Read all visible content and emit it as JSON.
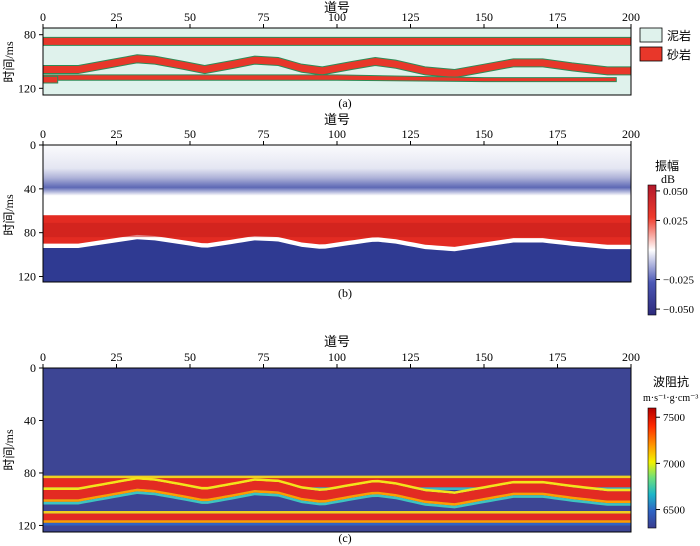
{
  "chart_data": [
    {
      "panel": "(a)",
      "type": "heatmap",
      "xlabel": "道号",
      "ylabel": "时间/ms",
      "xlim": [
        0,
        200
      ],
      "ylim": [
        75,
        125
      ],
      "xticks": [
        0,
        25,
        50,
        75,
        100,
        125,
        150,
        175,
        200
      ],
      "yticks": [
        80,
        120
      ],
      "legend": {
        "placement": "right",
        "entries": [
          {
            "label": "泥岩",
            "color": "#dff2ec"
          },
          {
            "label": "砂岩",
            "color": "#e8372a"
          }
        ]
      },
      "layers": [
        {
          "name": "sand",
          "top": [
            [
              0,
              82
            ],
            [
              200,
              82
            ]
          ],
          "bottom": [
            [
              0,
              88
            ],
            [
              200,
              88
            ]
          ]
        },
        {
          "name": "sand",
          "top": [
            [
              0,
              103
            ],
            [
              12,
              103
            ],
            [
              22,
              99
            ],
            [
              32,
              95
            ],
            [
              38,
              96
            ],
            [
              48,
              100
            ],
            [
              55,
              103
            ],
            [
              65,
              99
            ],
            [
              72,
              96
            ],
            [
              80,
              97
            ],
            [
              88,
              102
            ],
            [
              95,
              104
            ],
            [
              105,
              100
            ],
            [
              113,
              97
            ],
            [
              120,
              99
            ],
            [
              130,
              104
            ],
            [
              140,
              106
            ],
            [
              150,
              102
            ],
            [
              160,
              98
            ],
            [
              170,
              98
            ],
            [
              180,
              101
            ],
            [
              192,
              104
            ],
            [
              200,
              104
            ]
          ],
          "bottom": [
            [
              0,
              109
            ],
            [
              12,
              109
            ],
            [
              22,
              105
            ],
            [
              32,
              101
            ],
            [
              38,
              102
            ],
            [
              48,
              106
            ],
            [
              55,
              109
            ],
            [
              65,
              105
            ],
            [
              72,
              102
            ],
            [
              80,
              103
            ],
            [
              88,
              108
            ],
            [
              95,
              110
            ],
            [
              105,
              106
            ],
            [
              113,
              103
            ],
            [
              120,
              105
            ],
            [
              130,
              110
            ],
            [
              140,
              112
            ],
            [
              150,
              108
            ],
            [
              160,
              104
            ],
            [
              170,
              104
            ],
            [
              180,
              107
            ],
            [
              192,
              110
            ],
            [
              200,
              110
            ]
          ]
        },
        {
          "name": "sand",
          "top": [
            [
              0,
              110
            ],
            [
              100,
              110
            ],
            [
              150,
              112
            ],
            [
              195,
              112
            ]
          ],
          "bottom": [
            [
              0,
              114
            ],
            [
              100,
              114
            ],
            [
              150,
              115
            ],
            [
              195,
              115
            ]
          ]
        },
        {
          "name": "sand",
          "top": [
            [
              0,
              111
            ],
            [
              5,
              111
            ]
          ],
          "bottom": [
            [
              0,
              116
            ],
            [
              5,
              116
            ]
          ]
        }
      ]
    },
    {
      "panel": "(b)",
      "type": "heatmap",
      "xlabel": "道号",
      "ylabel": "时间/ms",
      "xlim": [
        0,
        200
      ],
      "ylim": [
        0,
        125
      ],
      "xticks": [
        0,
        25,
        50,
        75,
        100,
        125,
        150,
        175,
        200
      ],
      "yticks": [
        0,
        40,
        80,
        120
      ],
      "colorbar": {
        "title": "振幅",
        "unit": "dB",
        "range": [
          -0.055,
          0.055
        ],
        "ticks": [
          0.05,
          0.025,
          -0.025,
          -0.05
        ],
        "tick_labels": [
          "0.050",
          "0.025",
          "−0.025",
          "−0.050"
        ],
        "colormap": "blue-white-red"
      }
    },
    {
      "panel": "(c)",
      "type": "heatmap",
      "xlabel": "道号",
      "ylabel": "时间/ms",
      "xlim": [
        0,
        200
      ],
      "ylim": [
        0,
        125
      ],
      "xticks": [
        0,
        25,
        50,
        75,
        100,
        125,
        150,
        175,
        200
      ],
      "yticks": [
        0,
        40,
        80,
        120
      ],
      "colorbar": {
        "title": "波阻抗",
        "unit": "m·s⁻¹·g·cm⁻³",
        "range": [
          6300,
          7600
        ],
        "ticks": [
          7500,
          7000,
          6500
        ],
        "colormap": "jet"
      },
      "background_value": 6300
    }
  ],
  "labels": {
    "a": "(a)",
    "b": "(b)",
    "c": "(c)"
  }
}
